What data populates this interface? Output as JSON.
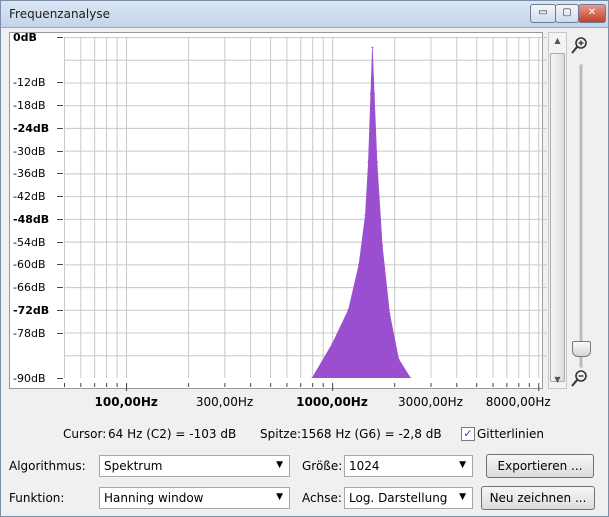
{
  "window": {
    "title": "Frequenzanalyse",
    "minimize_label": "▭",
    "maximize_label": "▢",
    "close_label": "✕"
  },
  "chart_data": {
    "type": "area",
    "title": "",
    "xlabel": "",
    "ylabel": "",
    "x_scale": "log",
    "x_tick_labels": [
      "100,00Hz",
      "300,00Hz",
      "1000,00Hz",
      "3000,00Hz",
      "8000,00Hz"
    ],
    "y_tick_labels": [
      "0dB",
      "-12dB",
      "-18dB",
      "-24dB",
      "-30dB",
      "-36dB",
      "-42dB",
      "-48dB",
      "-54dB",
      "-60dB",
      "-66dB",
      "-72dB",
      "-78dB",
      "-90dB"
    ],
    "ylim": [
      -90,
      0
    ],
    "xlim": [
      50,
      11025
    ],
    "grid": true,
    "color": "#9a4fd0",
    "x": [
      800,
      1000,
      1200,
      1350,
      1450,
      1500,
      1540,
      1568,
      1600,
      1650,
      1750,
      1900,
      2100,
      2400
    ],
    "values": [
      -90,
      -81,
      -72,
      -60,
      -47,
      -33,
      -15,
      -2.8,
      -15,
      -33,
      -55,
      -73,
      -85,
      -90
    ]
  },
  "cursor": {
    "label": "Cursor:",
    "value": "64 Hz (C2) = -103 dB"
  },
  "peak": {
    "label": "Spitze:",
    "value": "1568 Hz (G6) = -2,8 dB"
  },
  "grid_checkbox": {
    "label": "Gitterlinien",
    "checked": true
  },
  "algorithm": {
    "label": "Algorithmus:",
    "value": "Spektrum"
  },
  "size": {
    "label": "Größe:",
    "value": "1024"
  },
  "function": {
    "label": "Funktion:",
    "value": "Hanning window"
  },
  "axis": {
    "label": "Achse:",
    "value": "Log. Darstellung"
  },
  "buttons": {
    "export": "Exportieren ...",
    "redraw": "Neu zeichnen ..."
  },
  "icons": {
    "zoom_in": "zoom-in-icon",
    "zoom_out": "zoom-out-icon"
  }
}
